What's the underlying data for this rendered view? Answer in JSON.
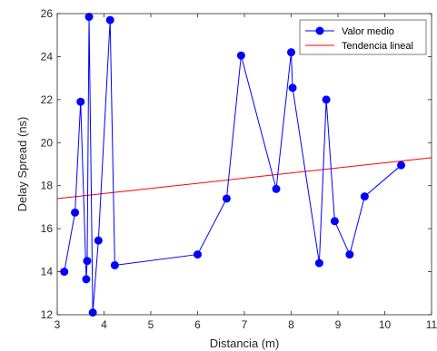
{
  "chart_data": {
    "type": "line",
    "xlabel": "Distancia (m)",
    "ylabel": "Delay Spread (ns)",
    "xlim": [
      3,
      11
    ],
    "ylim": [
      12,
      26
    ],
    "xticks": [
      3,
      4,
      5,
      6,
      7,
      8,
      9,
      10,
      11
    ],
    "yticks": [
      12,
      14,
      16,
      18,
      20,
      22,
      24,
      26
    ],
    "legend_position": "top-right",
    "grid": false,
    "series": [
      {
        "name": "Valor medio",
        "kind": "line-markers",
        "color": "#0000ff",
        "x": [
          3.15,
          3.38,
          3.5,
          3.62,
          3.64,
          3.68,
          3.76,
          3.88,
          4.13,
          4.23,
          6.0,
          6.62,
          6.93,
          7.68,
          8.0,
          8.03,
          8.6,
          8.75,
          8.93,
          9.25,
          9.57,
          10.35
        ],
        "y": [
          14.0,
          16.75,
          21.9,
          13.65,
          14.5,
          25.85,
          12.1,
          15.45,
          25.7,
          14.3,
          14.8,
          17.4,
          24.05,
          17.85,
          24.2,
          22.55,
          14.4,
          22.0,
          16.35,
          14.8,
          17.5,
          18.95
        ]
      },
      {
        "name": "Tendencia lineal",
        "kind": "line",
        "color": "#ff0000",
        "x": [
          3,
          11
        ],
        "y": [
          17.4,
          19.3
        ]
      }
    ]
  }
}
